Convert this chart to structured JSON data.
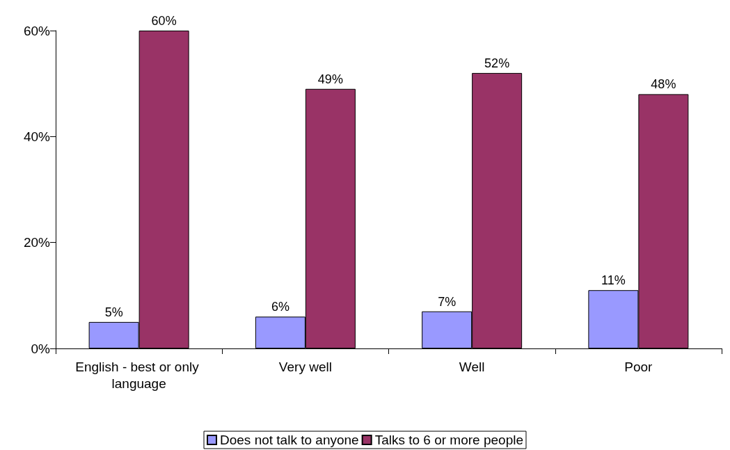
{
  "chart_data": {
    "type": "bar",
    "categories": [
      "English - best or only language",
      "Very well",
      "Well",
      "Poor"
    ],
    "series": [
      {
        "name": "Does not talk to anyone",
        "color": "#9999ff",
        "values": [
          5,
          6,
          7,
          11
        ],
        "value_labels": [
          "5%",
          "6%",
          "7%",
          "11%"
        ]
      },
      {
        "name": "Talks to 6 or more people",
        "color": "#993366",
        "values": [
          60,
          49,
          52,
          48
        ],
        "value_labels": [
          "60%",
          "49%",
          "52%",
          "48%"
        ]
      }
    ],
    "ylim": [
      0,
      60
    ],
    "yticks": [
      {
        "value": 0,
        "label": "0%"
      },
      {
        "value": 20,
        "label": "20%"
      },
      {
        "value": 40,
        "label": "40%"
      },
      {
        "value": 60,
        "label": "60%"
      }
    ],
    "grid": false,
    "legend": "bottom"
  }
}
